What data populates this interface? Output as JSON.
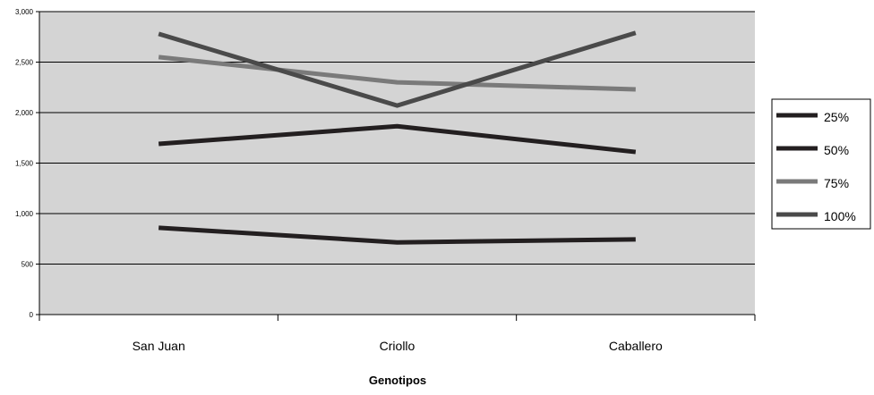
{
  "chart_data": {
    "type": "line",
    "categories": [
      "San Juan",
      "Criollo",
      "Caballero"
    ],
    "xlabel": "Genotipos",
    "ylabel": "",
    "ylim": [
      0,
      3000
    ],
    "y_ticks": [
      0,
      500,
      1000,
      1500,
      2000,
      2500,
      3000
    ],
    "y_tick_labels": [
      "0",
      "500",
      "1,000",
      "1,500",
      "2,000",
      "2,500",
      "3,000"
    ],
    "grid": true,
    "plot_background": "#d4d4d4",
    "legend_position": "right",
    "series": [
      {
        "name": "25%",
        "values": [
          860,
          715,
          745
        ],
        "color": "#231f20"
      },
      {
        "name": "50%",
        "values": [
          1690,
          1865,
          1610
        ],
        "color": "#231f20"
      },
      {
        "name": "75%",
        "values": [
          2550,
          2300,
          2230
        ],
        "color": "#7a7a7a"
      },
      {
        "name": "100%",
        "values": [
          2780,
          2070,
          2790
        ],
        "color": "#4a4a4a"
      }
    ]
  }
}
